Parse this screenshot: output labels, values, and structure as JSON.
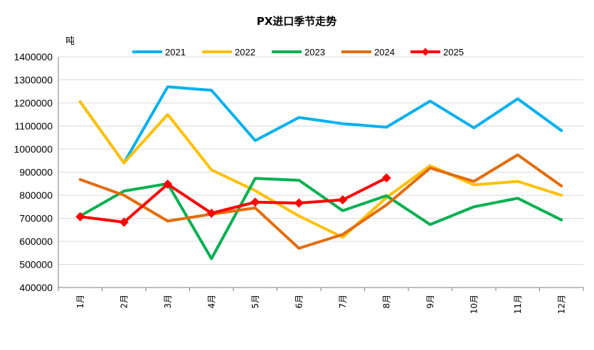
{
  "chart_data": {
    "type": "line",
    "title": "PX进口季节走势",
    "ylabel": "吨",
    "xlabel": "",
    "categories": [
      "1月",
      "2月",
      "3月",
      "4月",
      "5月",
      "6月",
      "7月",
      "8月",
      "9月",
      "10月",
      "11月",
      "12月"
    ],
    "ylim": [
      400000,
      1400000
    ],
    "yticks": [
      "400000",
      "500000",
      "600000",
      "700000",
      "800000",
      "900000",
      "1000000",
      "1100000",
      "1200000",
      "1300000",
      "1400000"
    ],
    "grid": true,
    "legend_position": "top",
    "series": [
      {
        "name": "2021",
        "color": "#00b0f0",
        "marker": "none",
        "values": [
          1205000,
          940000,
          1270000,
          1255000,
          1037000,
          1137000,
          1110000,
          1095000,
          1208000,
          1092000,
          1218000,
          1080000
        ]
      },
      {
        "name": "2022",
        "color": "#ffc000",
        "marker": "none",
        "values": [
          1205000,
          940000,
          1150000,
          910000,
          820000,
          710000,
          618000,
          790000,
          928000,
          845000,
          860000,
          800000
        ]
      },
      {
        "name": "2023",
        "color": "#00b050",
        "marker": "none",
        "values": [
          710000,
          818000,
          850000,
          525000,
          873000,
          865000,
          733000,
          798000,
          673000,
          750000,
          787000,
          693000
        ]
      },
      {
        "name": "2024",
        "color": "#e36c09",
        "marker": "none",
        "values": [
          868000,
          800000,
          688000,
          718000,
          745000,
          570000,
          630000,
          758000,
          918000,
          860000,
          975000,
          840000
        ]
      },
      {
        "name": "2025",
        "color": "#ff0000",
        "marker": "diamond",
        "values": [
          707000,
          683000,
          848000,
          722000,
          770000,
          766000,
          780000,
          875000,
          null,
          null,
          null,
          null
        ]
      }
    ]
  }
}
